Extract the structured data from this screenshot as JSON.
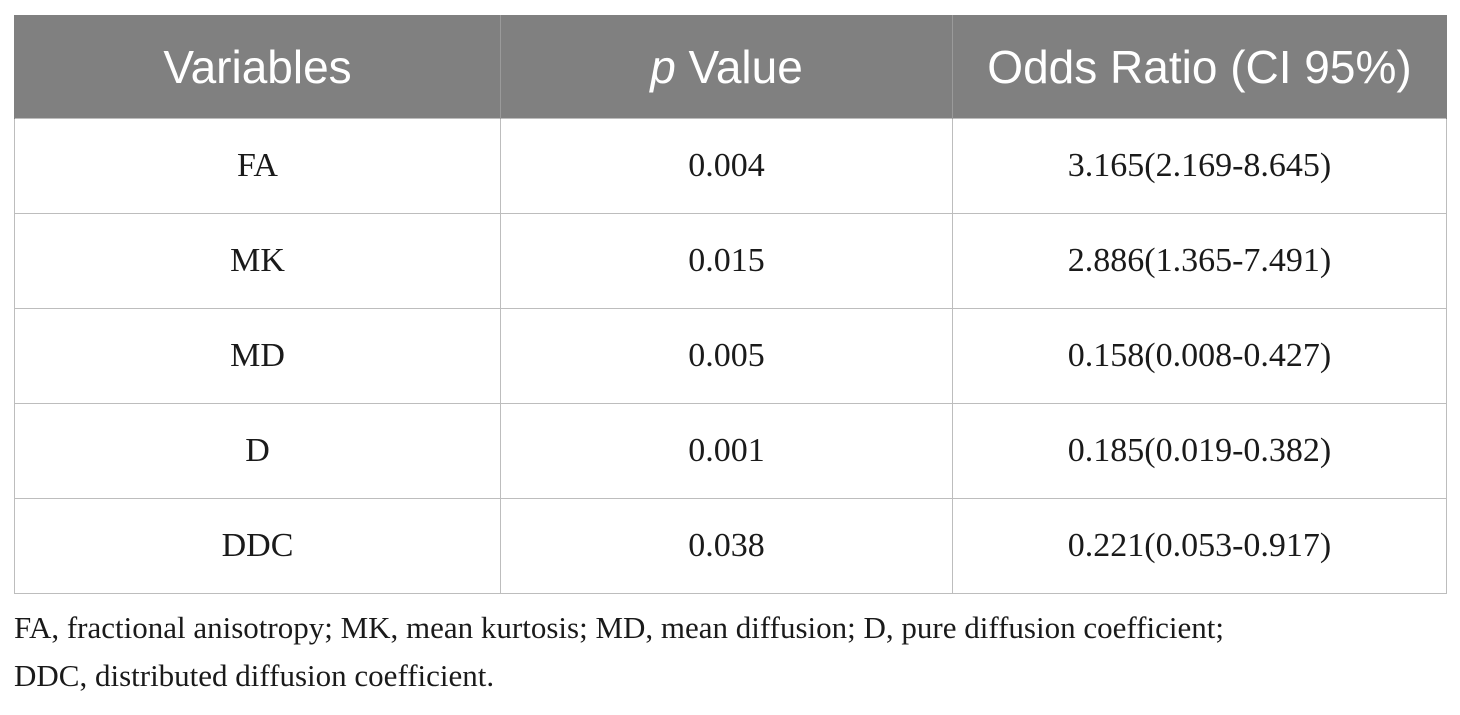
{
  "table": {
    "headers": {
      "variables": "Variables",
      "p_italic": "p",
      "p_rest": " Value",
      "odds_ratio": "Odds Ratio (CI 95%)"
    },
    "rows": [
      {
        "variable": "FA",
        "p_value": "0.004",
        "odds_ratio": "3.165(2.169-8.645)"
      },
      {
        "variable": "MK",
        "p_value": "0.015",
        "odds_ratio": "2.886(1.365-7.491)"
      },
      {
        "variable": "MD",
        "p_value": "0.005",
        "odds_ratio": "0.158(0.008-0.427)"
      },
      {
        "variable": "D",
        "p_value": "0.001",
        "odds_ratio": "0.185(0.019-0.382)"
      },
      {
        "variable": "DDC",
        "p_value": "0.038",
        "odds_ratio": "0.221(0.053-0.917)"
      }
    ]
  },
  "footnote": {
    "line1": "FA, fractional anisotropy; MK, mean kurtosis; MD, mean diffusion; D, pure diffusion coefficient;",
    "line2": "DDC, distributed diffusion coefficient."
  }
}
